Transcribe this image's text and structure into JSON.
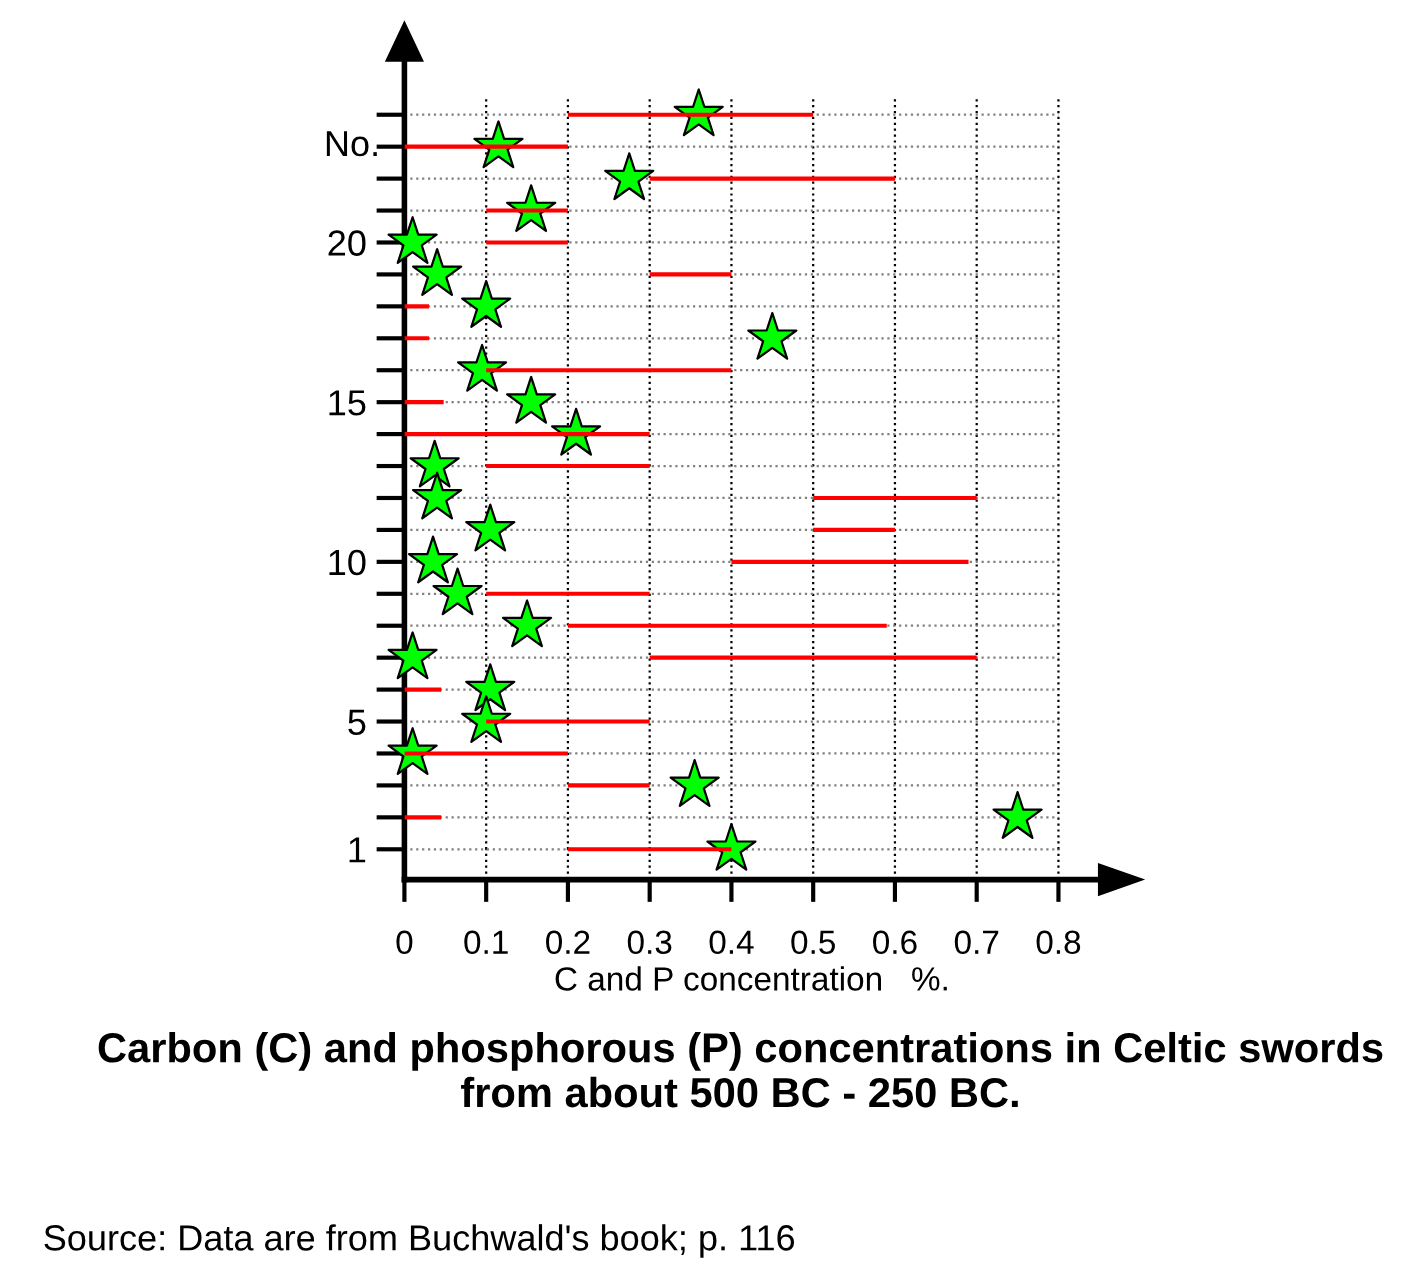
{
  "chart_data": {
    "type": "bar",
    "orientation": "horizontal",
    "title": "Carbon (C) and phosphorous (P) concentrations in Celtic swords from about 500 BC - 250 BC.",
    "xlabel": "C and P concentration   %.",
    "ylabel": "No.",
    "annotations": [
      "Source: Data are from Buchwald's book; p. 116"
    ],
    "categories": [
      null,
      null,
      null,
      null,
      "20",
      null,
      null,
      null,
      null,
      "15",
      null,
      null,
      null,
      null,
      "10",
      null,
      null,
      null,
      null,
      "5",
      null,
      null,
      null,
      "1"
    ],
    "xlim": [
      0,
      0.85
    ],
    "xticks": [
      0,
      0.1,
      0.2,
      0.3,
      0.4,
      0.5,
      0.6,
      0.7,
      0.8
    ],
    "grid": true,
    "line_style": "dotted",
    "series": [
      {
        "color": "#ff0000",
        "base": [
          0.2,
          0,
          0.3,
          0.1,
          0.1,
          0.3,
          0,
          0,
          0.1,
          0,
          0,
          0.1,
          0.5,
          0.5,
          0.4,
          0.1,
          0.2,
          0.3,
          0,
          0.1,
          0,
          0.2,
          0,
          0.2
        ],
        "values": [
          0.3,
          0.2,
          0.3,
          0.1,
          0.1,
          0.1,
          0.03,
          0.03,
          0.3,
          0.048,
          0.3,
          0.2,
          0.2,
          0.1,
          0.29,
          0.2,
          0.39,
          0.4,
          0.045,
          0.2,
          0.2,
          0.1,
          0.045,
          0.2
        ]
      },
      {
        "type": "scatter",
        "color": "#00ff00",
        "marker": "star",
        "values": [
          0.36,
          0.115,
          0.275,
          0.155,
          0.01,
          0.04,
          0.1,
          0.45,
          0.095,
          0.155,
          0.21,
          0.037,
          0.04,
          0.105,
          0.035,
          0.065,
          0.15,
          0.01,
          0.105,
          0.1,
          0.01,
          0.355,
          0.75,
          0.4
        ]
      }
    ]
  }
}
